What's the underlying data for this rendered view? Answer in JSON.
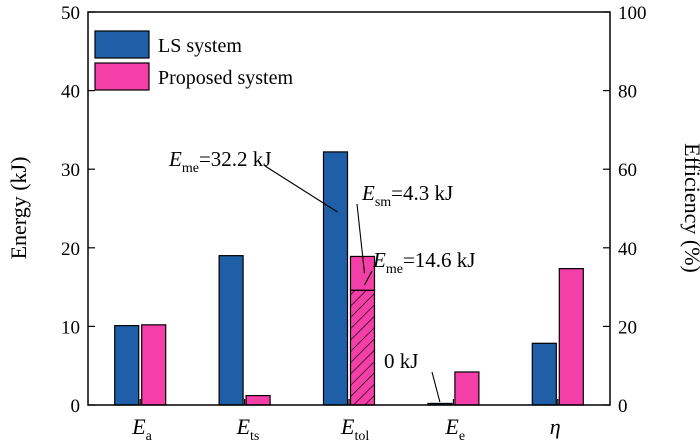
{
  "chart_data": {
    "type": "bar",
    "categories": [
      {
        "main": "E",
        "sub": "a"
      },
      {
        "main": "E",
        "sub": "ts"
      },
      {
        "main": "E",
        "sub": "tol"
      },
      {
        "main": "E",
        "sub": "e"
      },
      {
        "main": "η",
        "sub": ""
      }
    ],
    "series": [
      {
        "name": "LS system",
        "color": "#1f5fa8",
        "values": [
          10.1,
          19.0,
          32.2,
          0.2,
          15.7
        ]
      },
      {
        "name": "Proposed system",
        "color": "#f53fa8",
        "values": [
          10.2,
          1.2,
          18.9,
          4.2,
          34.7
        ]
      }
    ],
    "stacked_detail": {
      "category_index": 2,
      "series_index": 1,
      "segments": [
        {
          "label_main": "E",
          "label_sub": "me",
          "text": "=14.6 kJ",
          "value": 14.6,
          "pattern": "hatch"
        },
        {
          "label_main": "E",
          "label_sub": "sm",
          "text": "=4.3 kJ",
          "value": 4.3,
          "pattern": "solid"
        }
      ]
    },
    "annotations": [
      {
        "label_main": "E",
        "label_sub": "me",
        "text": "=32.2 kJ"
      },
      {
        "label_main": "",
        "label_sub": "",
        "text": "0 kJ"
      }
    ],
    "ylabel_left": "Energy (kJ)",
    "ylabel_right": "Efficiency (%)",
    "ylim_left": [
      0,
      50
    ],
    "ylim_right": [
      0,
      100
    ],
    "yticks_left": [
      0,
      10,
      20,
      30,
      40,
      50
    ],
    "yticks_right": [
      0,
      20,
      40,
      60,
      80,
      100
    ],
    "legend_position": "top-left",
    "grid": false
  }
}
